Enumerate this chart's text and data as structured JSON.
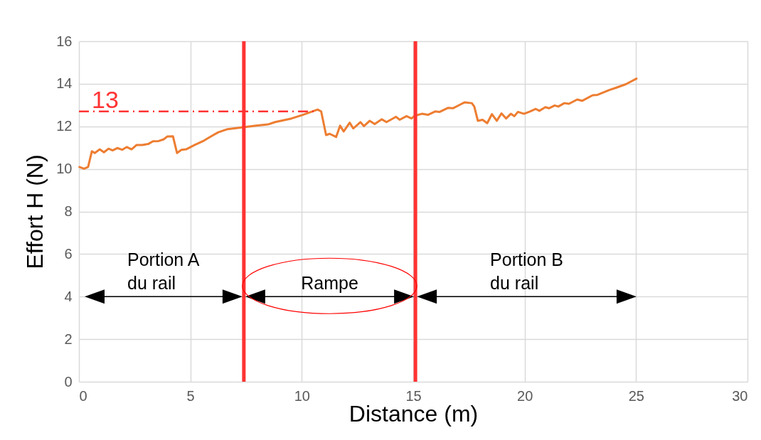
{
  "chart_data": {
    "type": "line",
    "xlabel": "Distance (m)",
    "ylabel": "Effort H (N)",
    "xlim": [
      0,
      30
    ],
    "xticks": [
      0,
      5,
      10,
      15,
      20,
      25,
      30
    ],
    "ylim": [
      0,
      16
    ],
    "yticks": [
      0,
      2,
      4,
      6,
      8,
      10,
      12,
      14,
      16
    ],
    "grid": true,
    "marker": "none",
    "line_style": "solid",
    "series": [
      {
        "color": "#ed7d31",
        "x": [
          0.02,
          0.23,
          0.41,
          0.58,
          0.71,
          0.93,
          1.12,
          1.33,
          1.51,
          1.72,
          1.94,
          2.15,
          2.36,
          2.58,
          2.84,
          3.11,
          3.32,
          3.58,
          3.8,
          3.96,
          4.22,
          4.4,
          4.6,
          4.81,
          5.18,
          5.61,
          6.03,
          6.25,
          6.67,
          7.31,
          7.95,
          8.48,
          8.8,
          9.54,
          10.02,
          10.71,
          10.87,
          11.09,
          11.25,
          11.54,
          11.72,
          11.88,
          12.15,
          12.31,
          12.63,
          12.79,
          13.05,
          13.27,
          13.59,
          13.8,
          14.23,
          14.39,
          14.7,
          14.92,
          15.07,
          15.39,
          15.66,
          15.98,
          16.19,
          16.57,
          16.78,
          17.1,
          17.31,
          17.63,
          17.74,
          17.9,
          18.11,
          18.32,
          18.53,
          18.75,
          18.96,
          19.17,
          19.38,
          19.54,
          19.7,
          19.97,
          20.24,
          20.5,
          20.66,
          20.93,
          21.09,
          21.35,
          21.51,
          21.78,
          21.99,
          22.36,
          22.58,
          23.05,
          23.27,
          23.8,
          24.12,
          24.54,
          25.02
        ],
        "values": [
          10.09,
          10.01,
          10.09,
          10.83,
          10.75,
          10.92,
          10.78,
          10.95,
          10.87,
          10.98,
          10.9,
          11.03,
          10.92,
          11.12,
          11.12,
          11.17,
          11.3,
          11.31,
          11.39,
          11.52,
          11.53,
          10.75,
          10.9,
          10.92,
          11.12,
          11.33,
          11.59,
          11.72,
          11.87,
          11.95,
          12.03,
          12.09,
          12.2,
          12.37,
          12.53,
          12.79,
          12.7,
          11.59,
          11.65,
          11.5,
          12.03,
          11.76,
          12.17,
          11.9,
          12.2,
          12.01,
          12.26,
          12.11,
          12.33,
          12.2,
          12.45,
          12.31,
          12.48,
          12.37,
          12.5,
          12.59,
          12.54,
          12.7,
          12.68,
          12.87,
          12.85,
          13.02,
          13.13,
          13.09,
          12.93,
          12.26,
          12.31,
          12.15,
          12.57,
          12.26,
          12.61,
          12.37,
          12.59,
          12.48,
          12.68,
          12.59,
          12.7,
          12.82,
          12.73,
          12.9,
          12.85,
          12.98,
          12.93,
          13.09,
          13.06,
          13.26,
          13.2,
          13.46,
          13.48,
          13.71,
          13.82,
          13.98,
          14.24
        ]
      }
    ],
    "ref_lines": [
      {
        "axis": "y",
        "value": 12.7,
        "label": "13",
        "color": "#ff3333",
        "line_style": "dashdot"
      },
      {
        "axis": "x",
        "value": 7.4,
        "color": "#ff3333",
        "line_style": "solid"
      },
      {
        "axis": "x",
        "value": 15.1,
        "color": "#ff3333",
        "line_style": "solid"
      }
    ],
    "annotations": [
      "Portion A\ndu rail",
      "Rampe",
      "Portion B\ndu rail"
    ]
  }
}
